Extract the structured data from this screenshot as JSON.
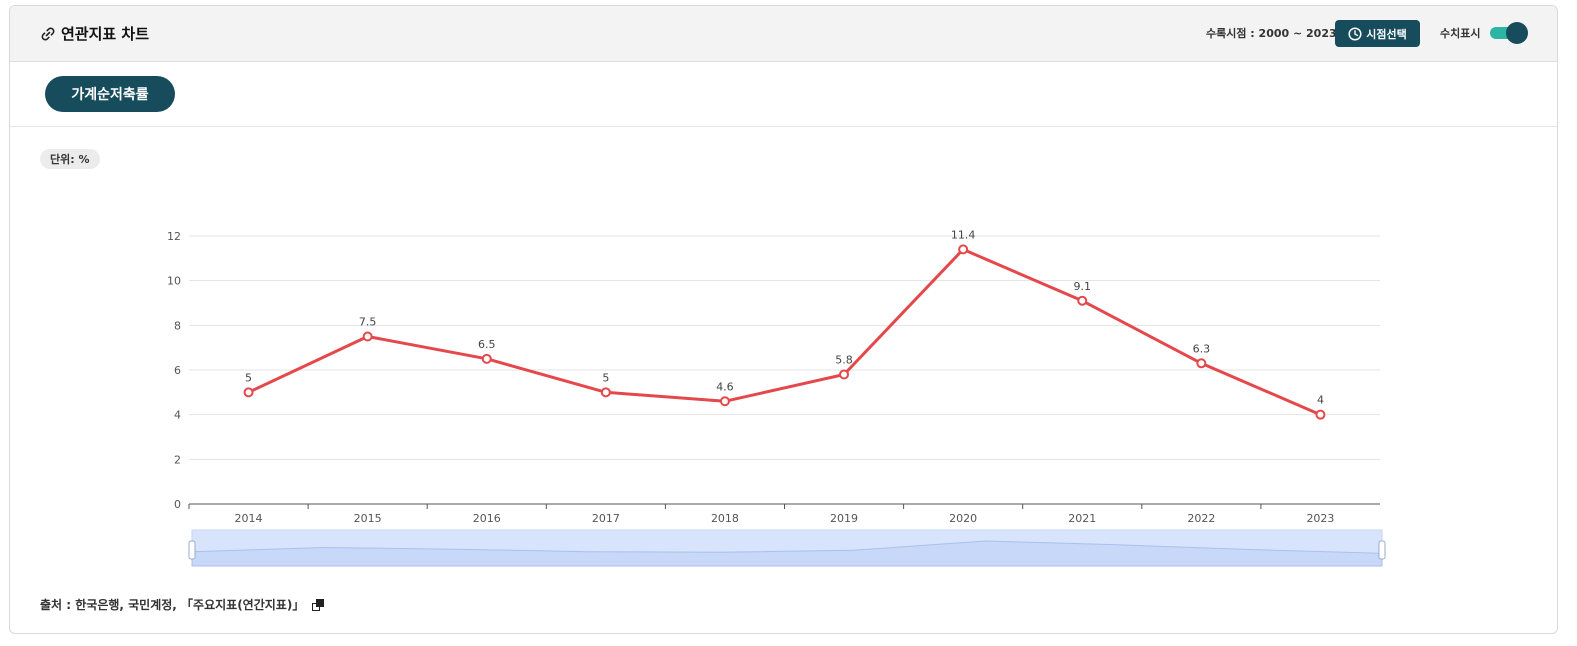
{
  "header": {
    "title": "연관지표 차트",
    "link_icon": "link-icon",
    "period_label": "수록시점 : 2000 ~ 2023",
    "period_button_label": "시점선택",
    "period_button_icon": "clock-icon",
    "value_toggle_label": "수치표시",
    "value_toggle_on": true
  },
  "indicator_tab": {
    "label": "가계순저축률"
  },
  "unit_badge": "단위: %",
  "source": {
    "text": "출처 :  한국은행, 국민계정, 「주요지표(연간지표)」",
    "copy_icon": "copy-icon"
  },
  "colors": {
    "accent": "#164c5c",
    "toggle_track": "#2bb5a3",
    "line": "#e5484b",
    "zoom_fill": "#d7e4fb"
  },
  "chart_data": {
    "type": "line",
    "categories": [
      "2014",
      "2015",
      "2016",
      "2017",
      "2018",
      "2019",
      "2020",
      "2021",
      "2022",
      "2023"
    ],
    "series": [
      {
        "values": [
          5,
          7.5,
          6.5,
          5,
          4.6,
          5.8,
          11.4,
          9.1,
          6.3,
          4
        ]
      }
    ],
    "data_labels": [
      "5",
      "7.5",
      "6.5",
      "5",
      "4.6",
      "5.8",
      "11.4",
      "9.1",
      "6.3",
      "4"
    ],
    "yticks": [
      "0",
      "2",
      "4",
      "6",
      "8",
      "10",
      "12"
    ],
    "ylim": [
      0,
      12
    ],
    "grid": true,
    "title": "",
    "xlabel": "",
    "ylabel": "",
    "data_zoom": true
  }
}
